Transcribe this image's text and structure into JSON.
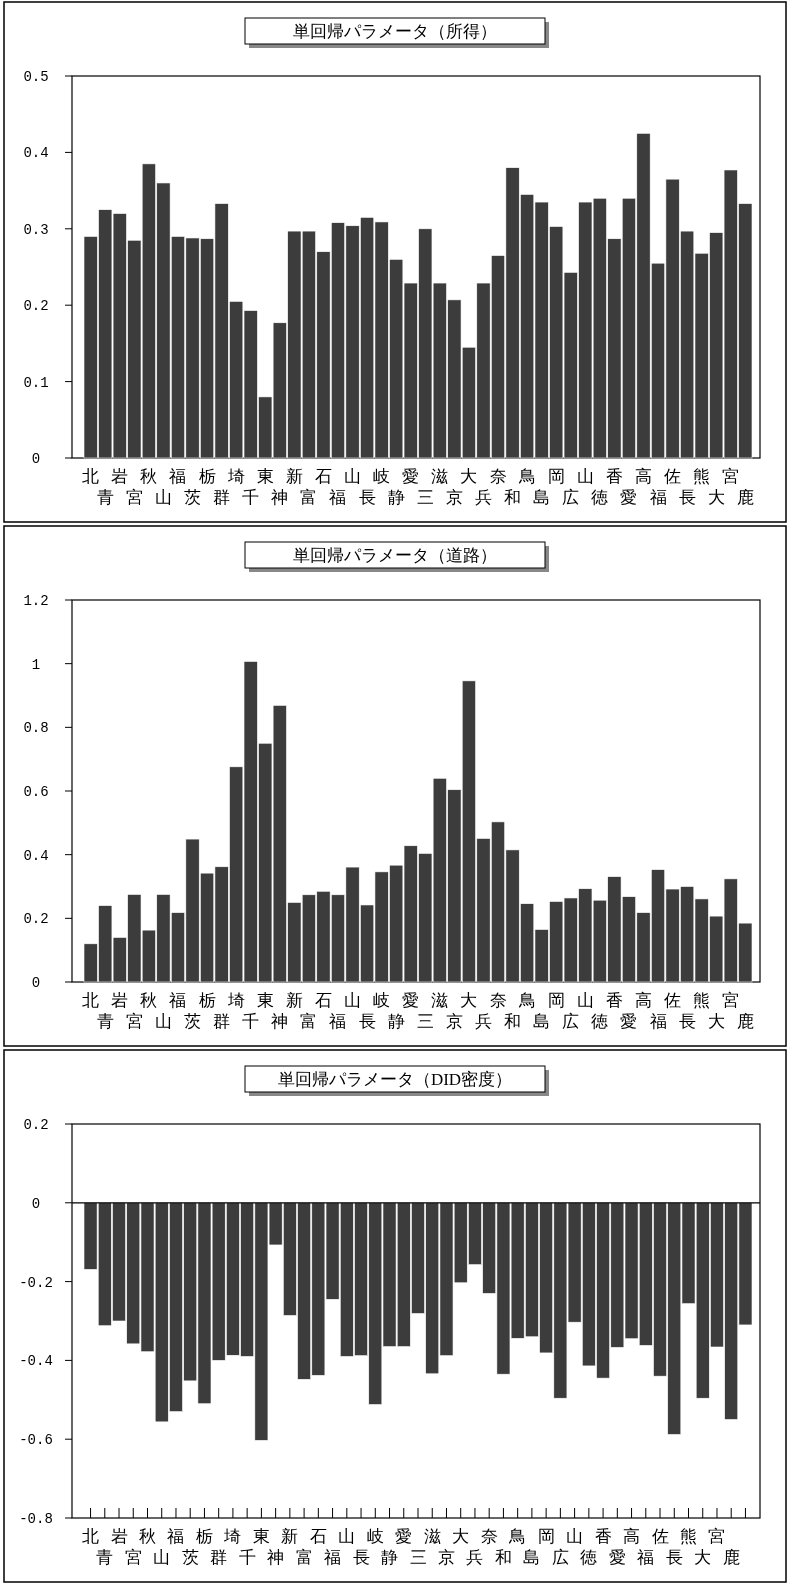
{
  "chart_data": [
    {
      "type": "bar",
      "title": "単回帰パラメータ（所得）",
      "categories": [
        "北",
        "青",
        "岩",
        "宮",
        "秋",
        "山",
        "福",
        "茨",
        "栃",
        "群",
        "埼",
        "千",
        "東",
        "神",
        "新",
        "富",
        "石",
        "福",
        "山",
        "長",
        "岐",
        "静",
        "愛",
        "三",
        "滋",
        "京",
        "大",
        "兵",
        "奈",
        "和",
        "鳥",
        "島",
        "岡",
        "広",
        "山",
        "徳",
        "香",
        "愛",
        "高",
        "福",
        "佐",
        "長",
        "熊",
        "大",
        "宮",
        "鹿"
      ],
      "values": [
        0.29,
        0.325,
        0.32,
        0.285,
        0.385,
        0.36,
        0.29,
        0.288,
        0.287,
        0.333,
        0.205,
        0.193,
        0.08,
        0.177,
        0.297,
        0.297,
        0.27,
        0.308,
        0.304,
        0.315,
        0.309,
        0.26,
        0.229,
        0.3,
        0.229,
        0.207,
        0.145,
        0.229,
        0.265,
        0.38,
        0.345,
        0.335,
        0.303,
        0.243,
        0.335,
        0.34,
        0.287,
        0.34,
        0.425,
        0.255,
        0.365,
        0.297,
        0.268,
        0.295,
        0.377,
        0.333
      ],
      "color": "#3c3c3c",
      "ylim": [
        0,
        0.5
      ],
      "yticks": [
        0,
        0.1,
        0.2,
        0.3,
        0.4,
        0.5
      ],
      "grid": false
    },
    {
      "type": "bar",
      "title": "単回帰パラメータ（道路）",
      "categories": [
        "北",
        "青",
        "岩",
        "宮",
        "秋",
        "山",
        "福",
        "茨",
        "栃",
        "群",
        "埼",
        "千",
        "東",
        "神",
        "新",
        "富",
        "石",
        "福",
        "山",
        "長",
        "岐",
        "静",
        "愛",
        "三",
        "滋",
        "京",
        "大",
        "兵",
        "奈",
        "和",
        "鳥",
        "島",
        "岡",
        "広",
        "山",
        "徳",
        "香",
        "愛",
        "高",
        "福",
        "佐",
        "長",
        "熊",
        "大",
        "宮",
        "鹿"
      ],
      "values": [
        0.12,
        0.24,
        0.14,
        0.275,
        0.163,
        0.275,
        0.218,
        0.449,
        0.342,
        0.362,
        0.676,
        1.007,
        0.75,
        0.869,
        0.25,
        0.274,
        0.285,
        0.274,
        0.361,
        0.242,
        0.346,
        0.367,
        0.428,
        0.404,
        0.64,
        0.604,
        0.946,
        0.451,
        0.503,
        0.415,
        0.246,
        0.165,
        0.253,
        0.264,
        0.293,
        0.257,
        0.331,
        0.268,
        0.218,
        0.353,
        0.292,
        0.3,
        0.261,
        0.207,
        0.324,
        0.185
      ],
      "color": "#3c3c3c",
      "ylim": [
        0,
        1.2
      ],
      "yticks": [
        0,
        0.2,
        0.4,
        0.6,
        0.8,
        1,
        1.2
      ],
      "grid": false
    },
    {
      "type": "bar",
      "title": "単回帰パラメータ（DID密度）",
      "categories": [
        "北",
        "青",
        "岩",
        "宮",
        "秋",
        "山",
        "福",
        "茨",
        "栃",
        "群",
        "埼",
        "千",
        "東",
        "神",
        "新",
        "富",
        "石",
        "福",
        "山",
        "長",
        "岐",
        "静",
        "愛",
        "三",
        "滋",
        "京",
        "大",
        "兵",
        "奈",
        "和",
        "鳥",
        "島",
        "岡",
        "広",
        "山",
        "徳",
        "香",
        "愛",
        "高",
        "福",
        "佐",
        "長",
        "熊",
        "大",
        "宮",
        "鹿",
        null
      ],
      "values": [
        -0.169,
        -0.312,
        -0.3,
        -0.358,
        -0.378,
        -0.556,
        -0.53,
        -0.452,
        -0.51,
        -0.4,
        -0.387,
        -0.39,
        -0.603,
        -0.107,
        -0.286,
        -0.448,
        -0.438,
        -0.245,
        -0.39,
        -0.388,
        -0.512,
        -0.365,
        -0.365,
        -0.281,
        -0.434,
        -0.388,
        -0.203,
        -0.157,
        -0.23,
        -0.435,
        -0.344,
        -0.34,
        -0.381,
        -0.496,
        -0.303,
        -0.414,
        -0.445,
        -0.367,
        -0.345,
        -0.362,
        -0.44,
        -0.588,
        -0.256,
        -0.496,
        -0.366,
        -0.55,
        -0.31
      ],
      "color": "#3c3c3c",
      "ylim": [
        -0.8,
        0.2
      ],
      "yticks": [
        0.2,
        0,
        -0.2,
        -0.4,
        -0.6,
        -0.8
      ],
      "ref_lines": [
        {
          "axis": "y",
          "value": 0,
          "color": "#000000"
        }
      ]
    }
  ]
}
